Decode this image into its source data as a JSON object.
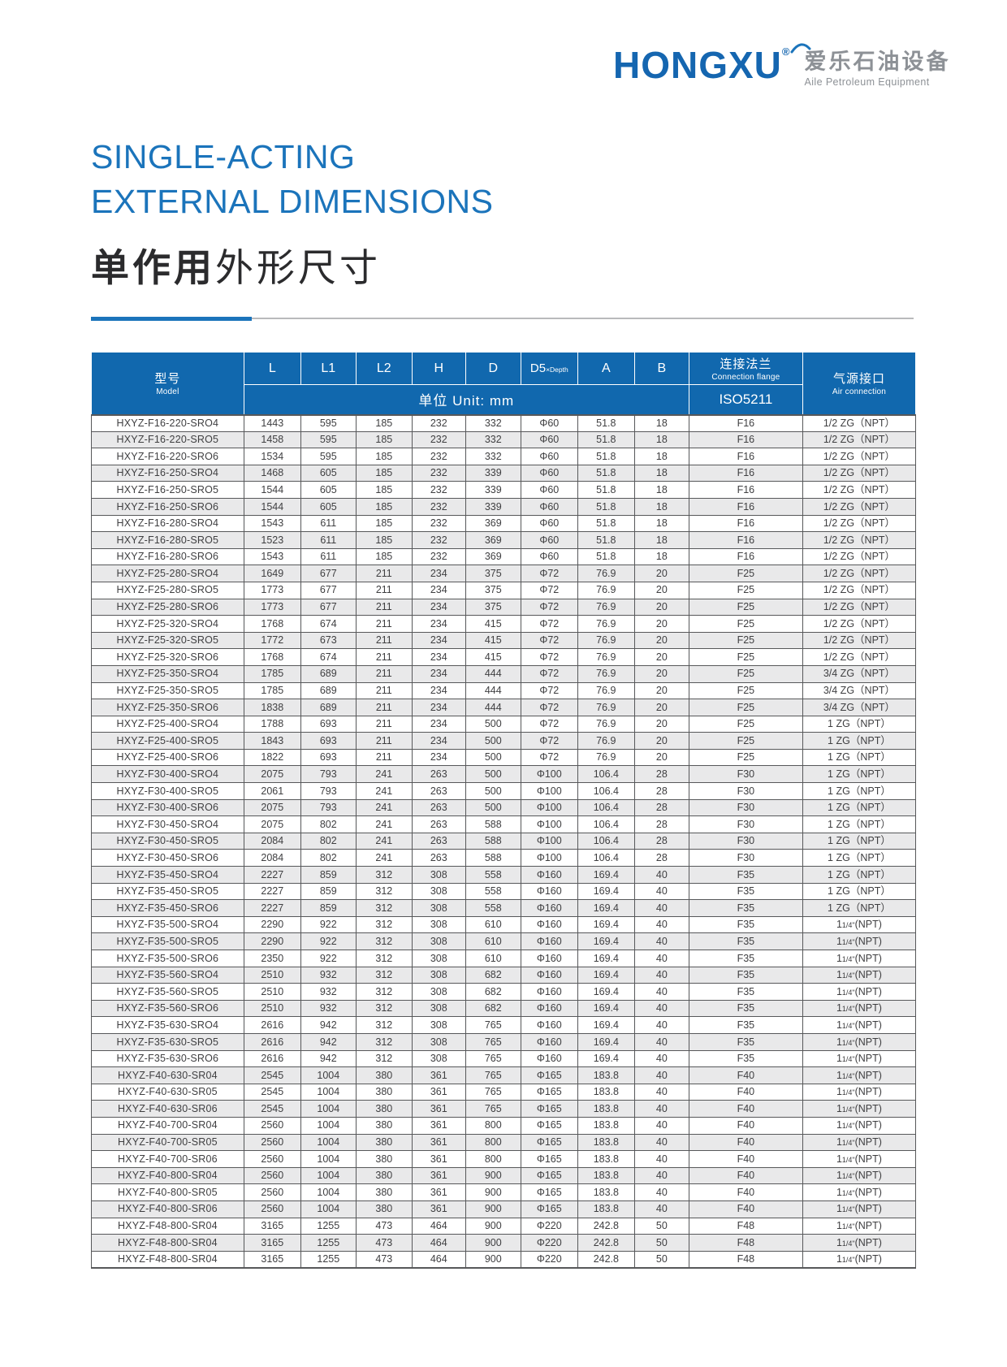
{
  "logo": {
    "brand": "HONGXU",
    "registered": "®",
    "cn": "爱乐石油设备",
    "en": "Aile Petroleum Equipment"
  },
  "title": {
    "line1": "SINGLE-ACTING",
    "line2": "EXTERNAL DIMENSIONS",
    "cn_bold": "单作用",
    "cn_rest": "外形尺寸"
  },
  "colors": {
    "header_blue": "#1168ae",
    "accent_blue": "#1b74bb",
    "logo_blue": "#1566b0",
    "logo_gray": "#8d9196",
    "row_stripe": "#e9e9ea",
    "cell_border": "#57585a"
  },
  "table": {
    "header": {
      "model_cn": "型号",
      "model_en": "Model",
      "col_l": "L",
      "col_l1": "L1",
      "col_l2": "L2",
      "col_h": "H",
      "col_d": "D",
      "d5_main": "D5",
      "d5_sub": "×Depth",
      "col_a": "A",
      "col_b": "B",
      "unit": "单位 Unit: mm",
      "flange_cn": "连接法兰",
      "flange_en": "Connection flange",
      "flange_std": "ISO5211",
      "air_cn": "气源接口",
      "air_en": "Air connection"
    },
    "rows": [
      [
        "HXYZ-F16-220-SRO4",
        "1443",
        "595",
        "185",
        "232",
        "332",
        "Φ60",
        "51.8",
        "18",
        "F16",
        "1/2 ZG（NPT）"
      ],
      [
        "HXYZ-F16-220-SRO5",
        "1458",
        "595",
        "185",
        "232",
        "332",
        "Φ60",
        "51.8",
        "18",
        "F16",
        "1/2 ZG（NPT）"
      ],
      [
        "HXYZ-F16-220-SRO6",
        "1534",
        "595",
        "185",
        "232",
        "332",
        "Φ60",
        "51.8",
        "18",
        "F16",
        "1/2 ZG（NPT）"
      ],
      [
        "HXYZ-F16-250-SRO4",
        "1468",
        "605",
        "185",
        "232",
        "339",
        "Φ60",
        "51.8",
        "18",
        "F16",
        "1/2 ZG（NPT）"
      ],
      [
        "HXYZ-F16-250-SRO5",
        "1544",
        "605",
        "185",
        "232",
        "339",
        "Φ60",
        "51.8",
        "18",
        "F16",
        "1/2 ZG（NPT）"
      ],
      [
        "HXYZ-F16-250-SRO6",
        "1544",
        "605",
        "185",
        "232",
        "339",
        "Φ60",
        "51.8",
        "18",
        "F16",
        "1/2 ZG（NPT）"
      ],
      [
        "HXYZ-F16-280-SRO4",
        "1543",
        "611",
        "185",
        "232",
        "369",
        "Φ60",
        "51.8",
        "18",
        "F16",
        "1/2 ZG（NPT）"
      ],
      [
        "HXYZ-F16-280-SRO5",
        "1523",
        "611",
        "185",
        "232",
        "369",
        "Φ60",
        "51.8",
        "18",
        "F16",
        "1/2 ZG（NPT）"
      ],
      [
        "HXYZ-F16-280-SRO6",
        "1543",
        "611",
        "185",
        "232",
        "369",
        "Φ60",
        "51.8",
        "18",
        "F16",
        "1/2 ZG（NPT）"
      ],
      [
        "HXYZ-F25-280-SRO4",
        "1649",
        "677",
        "211",
        "234",
        "375",
        "Φ72",
        "76.9",
        "20",
        "F25",
        "1/2 ZG（NPT）"
      ],
      [
        "HXYZ-F25-280-SRO5",
        "1773",
        "677",
        "211",
        "234",
        "375",
        "Φ72",
        "76.9",
        "20",
        "F25",
        "1/2 ZG（NPT）"
      ],
      [
        "HXYZ-F25-280-SRO6",
        "1773",
        "677",
        "211",
        "234",
        "375",
        "Φ72",
        "76.9",
        "20",
        "F25",
        "1/2 ZG（NPT）"
      ],
      [
        "HXYZ-F25-320-SRO4",
        "1768",
        "674",
        "211",
        "234",
        "415",
        "Φ72",
        "76.9",
        "20",
        "F25",
        "1/2 ZG（NPT）"
      ],
      [
        "HXYZ-F25-320-SRO5",
        "1772",
        "673",
        "211",
        "234",
        "415",
        "Φ72",
        "76.9",
        "20",
        "F25",
        "1/2 ZG（NPT）"
      ],
      [
        "HXYZ-F25-320-SRO6",
        "1768",
        "674",
        "211",
        "234",
        "415",
        "Φ72",
        "76.9",
        "20",
        "F25",
        "1/2 ZG（NPT）"
      ],
      [
        "HXYZ-F25-350-SRO4",
        "1785",
        "689",
        "211",
        "234",
        "444",
        "Φ72",
        "76.9",
        "20",
        "F25",
        "3/4 ZG（NPT）"
      ],
      [
        "HXYZ-F25-350-SRO5",
        "1785",
        "689",
        "211",
        "234",
        "444",
        "Φ72",
        "76.9",
        "20",
        "F25",
        "3/4 ZG（NPT）"
      ],
      [
        "HXYZ-F25-350-SRO6",
        "1838",
        "689",
        "211",
        "234",
        "444",
        "Φ72",
        "76.9",
        "20",
        "F25",
        "3/4 ZG（NPT）"
      ],
      [
        "HXYZ-F25-400-SRO4",
        "1788",
        "693",
        "211",
        "234",
        "500",
        "Φ72",
        "76.9",
        "20",
        "F25",
        "1 ZG（NPT）"
      ],
      [
        "HXYZ-F25-400-SRO5",
        "1843",
        "693",
        "211",
        "234",
        "500",
        "Φ72",
        "76.9",
        "20",
        "F25",
        "1 ZG（NPT）"
      ],
      [
        "HXYZ-F25-400-SRO6",
        "1822",
        "693",
        "211",
        "234",
        "500",
        "Φ72",
        "76.9",
        "20",
        "F25",
        "1 ZG（NPT）"
      ],
      [
        "HXYZ-F30-400-SRO4",
        "2075",
        "793",
        "241",
        "263",
        "500",
        "Φ100",
        "106.4",
        "28",
        "F30",
        "1 ZG（NPT）"
      ],
      [
        "HXYZ-F30-400-SRO5",
        "2061",
        "793",
        "241",
        "263",
        "500",
        "Φ100",
        "106.4",
        "28",
        "F30",
        "1 ZG（NPT）"
      ],
      [
        "HXYZ-F30-400-SRO6",
        "2075",
        "793",
        "241",
        "263",
        "500",
        "Φ100",
        "106.4",
        "28",
        "F30",
        "1 ZG（NPT）"
      ],
      [
        "HXYZ-F30-450-SRO4",
        "2075",
        "802",
        "241",
        "263",
        "588",
        "Φ100",
        "106.4",
        "28",
        "F30",
        "1 ZG（NPT）"
      ],
      [
        "HXYZ-F30-450-SRO5",
        "2084",
        "802",
        "241",
        "263",
        "588",
        "Φ100",
        "106.4",
        "28",
        "F30",
        "1 ZG（NPT）"
      ],
      [
        "HXYZ-F30-450-SRO6",
        "2084",
        "802",
        "241",
        "263",
        "588",
        "Φ100",
        "106.4",
        "28",
        "F30",
        "1 ZG（NPT）"
      ],
      [
        "HXYZ-F35-450-SRO4",
        "2227",
        "859",
        "312",
        "308",
        "558",
        "Φ160",
        "169.4",
        "40",
        "F35",
        "1 ZG（NPT）"
      ],
      [
        "HXYZ-F35-450-SRO5",
        "2227",
        "859",
        "312",
        "308",
        "558",
        "Φ160",
        "169.4",
        "40",
        "F35",
        "1 ZG（NPT）"
      ],
      [
        "HXYZ-F35-450-SRO6",
        "2227",
        "859",
        "312",
        "308",
        "558",
        "Φ160",
        "169.4",
        "40",
        "F35",
        "1 ZG（NPT）"
      ],
      [
        "HXYZ-F35-500-SRO4",
        "2290",
        "922",
        "312",
        "308",
        "610",
        "Φ160",
        "169.4",
        "40",
        "F35",
        "1 1/4\"(NPT)"
      ],
      [
        "HXYZ-F35-500-SRO5",
        "2290",
        "922",
        "312",
        "308",
        "610",
        "Φ160",
        "169.4",
        "40",
        "F35",
        "1 1/4\"(NPT)"
      ],
      [
        "HXYZ-F35-500-SRO6",
        "2350",
        "922",
        "312",
        "308",
        "610",
        "Φ160",
        "169.4",
        "40",
        "F35",
        "1 1/4\"(NPT)"
      ],
      [
        "HXYZ-F35-560-SRO4",
        "2510",
        "932",
        "312",
        "308",
        "682",
        "Φ160",
        "169.4",
        "40",
        "F35",
        "1 1/4\"(NPT)"
      ],
      [
        "HXYZ-F35-560-SRO5",
        "2510",
        "932",
        "312",
        "308",
        "682",
        "Φ160",
        "169.4",
        "40",
        "F35",
        "1 1/4\"(NPT)"
      ],
      [
        "HXYZ-F35-560-SRO6",
        "2510",
        "932",
        "312",
        "308",
        "682",
        "Φ160",
        "169.4",
        "40",
        "F35",
        "1 1/4\"(NPT)"
      ],
      [
        "HXYZ-F35-630-SRO4",
        "2616",
        "942",
        "312",
        "308",
        "765",
        "Φ160",
        "169.4",
        "40",
        "F35",
        "1 1/4\"(NPT)"
      ],
      [
        "HXYZ-F35-630-SRO5",
        "2616",
        "942",
        "312",
        "308",
        "765",
        "Φ160",
        "169.4",
        "40",
        "F35",
        "1 1/4\"(NPT)"
      ],
      [
        "HXYZ-F35-630-SRO6",
        "2616",
        "942",
        "312",
        "308",
        "765",
        "Φ160",
        "169.4",
        "40",
        "F35",
        "1 1/4\"(NPT)"
      ],
      [
        "HXYZ-F40-630-SR04",
        "2545",
        "1004",
        "380",
        "361",
        "765",
        "Φ165",
        "183.8",
        "40",
        "F40",
        "1 1/4\"(NPT)"
      ],
      [
        "HXYZ-F40-630-SR05",
        "2545",
        "1004",
        "380",
        "361",
        "765",
        "Φ165",
        "183.8",
        "40",
        "F40",
        "1 1/4\"(NPT)"
      ],
      [
        "HXYZ-F40-630-SR06",
        "2545",
        "1004",
        "380",
        "361",
        "765",
        "Φ165",
        "183.8",
        "40",
        "F40",
        "1 1/4\"(NPT)"
      ],
      [
        "HXYZ-F40-700-SR04",
        "2560",
        "1004",
        "380",
        "361",
        "800",
        "Φ165",
        "183.8",
        "40",
        "F40",
        "1 1/4\"(NPT)"
      ],
      [
        "HXYZ-F40-700-SR05",
        "2560",
        "1004",
        "380",
        "361",
        "800",
        "Φ165",
        "183.8",
        "40",
        "F40",
        "1 1/4\"(NPT)"
      ],
      [
        "HXYZ-F40-700-SR06",
        "2560",
        "1004",
        "380",
        "361",
        "800",
        "Φ165",
        "183.8",
        "40",
        "F40",
        "1 1/4\"(NPT)"
      ],
      [
        "HXYZ-F40-800-SR04",
        "2560",
        "1004",
        "380",
        "361",
        "900",
        "Φ165",
        "183.8",
        "40",
        "F40",
        "1 1/4\"(NPT)"
      ],
      [
        "HXYZ-F40-800-SR05",
        "2560",
        "1004",
        "380",
        "361",
        "900",
        "Φ165",
        "183.8",
        "40",
        "F40",
        "1 1/4\"(NPT)"
      ],
      [
        "HXYZ-F40-800-SR06",
        "2560",
        "1004",
        "380",
        "361",
        "900",
        "Φ165",
        "183.8",
        "40",
        "F40",
        "1 1/4\"(NPT)"
      ],
      [
        "HXYZ-F48-800-SR04",
        "3165",
        "1255",
        "473",
        "464",
        "900",
        "Φ220",
        "242.8",
        "50",
        "F48",
        "1 1/4\"(NPT)"
      ],
      [
        "HXYZ-F48-800-SR04",
        "3165",
        "1255",
        "473",
        "464",
        "900",
        "Φ220",
        "242.8",
        "50",
        "F48",
        "1 1/4\"(NPT)"
      ],
      [
        "HXYZ-F48-800-SR04",
        "3165",
        "1255",
        "473",
        "464",
        "900",
        "Φ220",
        "242.8",
        "50",
        "F48",
        "1 1/4\"(NPT)"
      ]
    ]
  }
}
